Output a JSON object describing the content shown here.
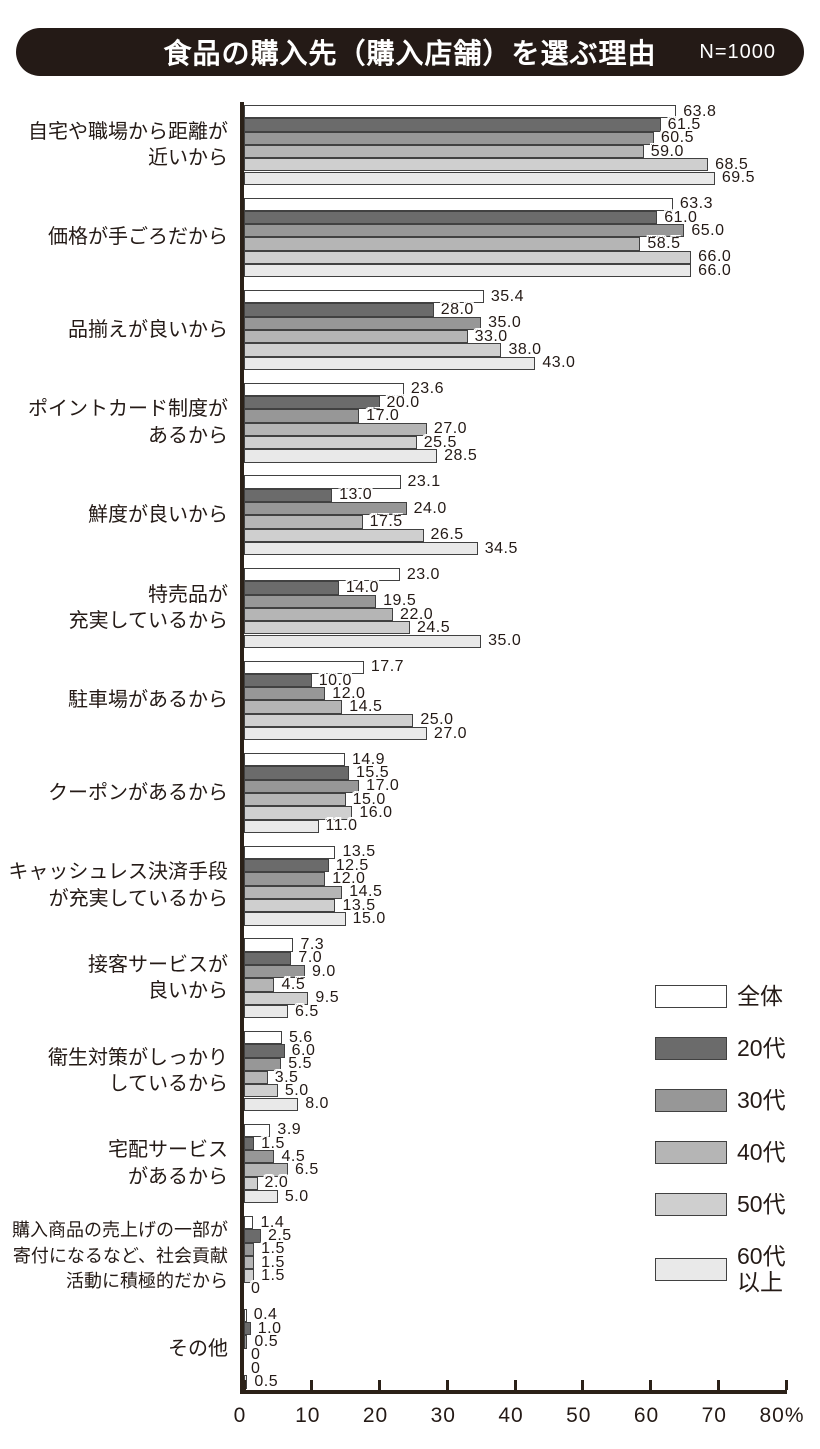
{
  "header": {
    "title": "食品の購入先（購入店舗）を選ぶ理由",
    "sample": "N=1000"
  },
  "chart_data": {
    "type": "bar",
    "orientation": "horizontal",
    "title": "食品の購入先（購入店舗）を選ぶ理由",
    "sample_size": "N=1000",
    "xlim": [
      0,
      80
    ],
    "xticks": [
      "0",
      "10",
      "20",
      "30",
      "40",
      "50",
      "60",
      "70",
      "80%"
    ],
    "grid": false,
    "legend_position": "right-lower",
    "series_names": [
      "全体",
      "20代",
      "30代",
      "40代",
      "50代",
      "60代以上"
    ],
    "legend_labels": [
      "全体",
      "20代",
      "30代",
      "40代",
      "50代",
      "60代\n以上"
    ],
    "series_colors": [
      "#ffffff",
      "#6b6b6b",
      "#979797",
      "#b5b5b5",
      "#cfcfcf",
      "#e9e9e9"
    ],
    "categories": [
      {
        "label_lines": [
          "自宅や職場から距離が",
          "近いから"
        ],
        "values": [
          "63.8",
          "61.5",
          "60.5",
          "59.0",
          "68.5",
          "69.5"
        ]
      },
      {
        "label_lines": [
          "価格が手ごろだから"
        ],
        "values": [
          "63.3",
          "61.0",
          "65.0",
          "58.5",
          "66.0",
          "66.0"
        ]
      },
      {
        "label_lines": [
          "品揃えが良いから"
        ],
        "values": [
          "35.4",
          "28.0",
          "35.0",
          "33.0",
          "38.0",
          "43.0"
        ]
      },
      {
        "label_lines": [
          "ポイントカード制度が",
          "あるから"
        ],
        "values": [
          "23.6",
          "20.0",
          "17.0",
          "27.0",
          "25.5",
          "28.5"
        ]
      },
      {
        "label_lines": [
          "鮮度が良いから"
        ],
        "values": [
          "23.1",
          "13.0",
          "24.0",
          "17.5",
          "26.5",
          "34.5"
        ]
      },
      {
        "label_lines": [
          "特売品が",
          "充実しているから"
        ],
        "values": [
          "23.0",
          "14.0",
          "19.5",
          "22.0",
          "24.5",
          "35.0"
        ]
      },
      {
        "label_lines": [
          "駐車場があるから"
        ],
        "values": [
          "17.7",
          "10.0",
          "12.0",
          "14.5",
          "25.0",
          "27.0"
        ]
      },
      {
        "label_lines": [
          "クーポンがあるから"
        ],
        "values": [
          "14.9",
          "15.5",
          "17.0",
          "15.0",
          "16.0",
          "11.0"
        ]
      },
      {
        "label_lines": [
          "キャッシュレス決済手段",
          "が充実しているから"
        ],
        "values": [
          "13.5",
          "12.5",
          "12.0",
          "14.5",
          "13.5",
          "15.0"
        ]
      },
      {
        "label_lines": [
          "接客サービスが",
          "良いから"
        ],
        "values": [
          "7.3",
          "7.0",
          "9.0",
          "4.5",
          "9.5",
          "6.5"
        ]
      },
      {
        "label_lines": [
          "衛生対策がしっかり",
          "しているから"
        ],
        "values": [
          "5.6",
          "6.0",
          "5.5",
          "3.5",
          "5.0",
          "8.0"
        ]
      },
      {
        "label_lines": [
          "宅配サービス",
          "があるから"
        ],
        "values": [
          "3.9",
          "1.5",
          "4.5",
          "6.5",
          "2.0",
          "5.0"
        ]
      },
      {
        "label_lines": [
          "購入商品の売上げの一部が",
          "寄付になるなど、社会貢献",
          "活動に積極的だから"
        ],
        "values": [
          "1.4",
          "2.5",
          "1.5",
          "1.5",
          "1.5",
          "0"
        ],
        "small_label": true
      },
      {
        "label_lines": [
          "その他"
        ],
        "values": [
          "0.4",
          "1.0",
          "0.5",
          "0",
          "0",
          "0.5"
        ]
      }
    ]
  }
}
